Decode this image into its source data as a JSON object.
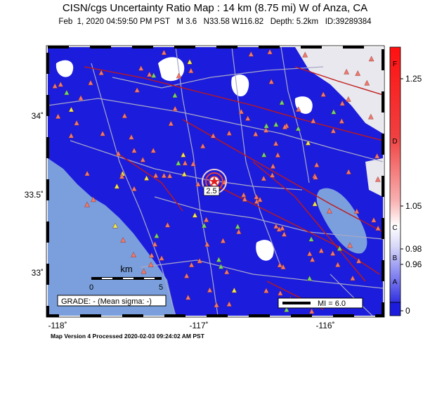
{
  "header": {
    "title": "CISN/cgs Uncertainty Ratio Map : 14 km (8.75 mi) W of Anza, CA",
    "subtitle": "Feb  1, 2020 04:59:50 PM PST   M 3.6   N33.58 W116.82   Depth: 5.2km   ID:39289384"
  },
  "map": {
    "lat_labels": [
      "34˚",
      "33.5˚",
      "33˚"
    ],
    "lon_labels": [
      "-118˚",
      "-117˚",
      "-116˚"
    ],
    "contour_label": "2.5",
    "scale_bar": {
      "unit": "km",
      "start": "0",
      "end": "5"
    },
    "grade": "GRADE: - (Mean sigma: -)",
    "mi_legend": "MI = 6.0"
  },
  "colorbar": {
    "value_labels": [
      "1.25",
      "1.05",
      "0.98",
      "0.96",
      "0"
    ],
    "grade_letters": [
      "F",
      "D",
      "C",
      "B",
      "A"
    ]
  },
  "footer": "Map Version 4 Processed 2020-02-03 09:24:02 AM PST"
}
